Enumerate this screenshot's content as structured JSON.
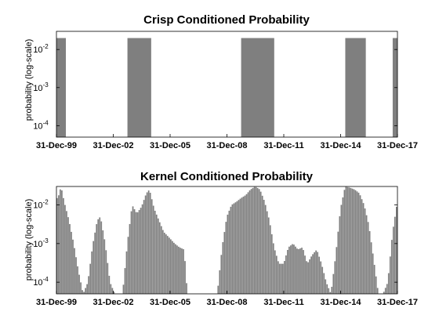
{
  "chart_data": [
    {
      "type": "bar",
      "title": "Crisp Conditioned Probability",
      "ylabel": "probability (log-scale)",
      "yscale": "log",
      "ylim": [
        5e-05,
        0.03
      ],
      "yticks": [
        {
          "value": 0.0001,
          "base": "10",
          "exp": "-4"
        },
        {
          "value": 0.001,
          "base": "10",
          "exp": "-3"
        },
        {
          "value": 0.01,
          "base": "10",
          "exp": "-2"
        }
      ],
      "xlim": [
        "1999-12-31",
        "2017-12-31"
      ],
      "xticks": [
        "31-Dec-99",
        "31-Dec-02",
        "31-Dec-05",
        "31-Dec-08",
        "31-Dec-11",
        "31-Dec-14",
        "31-Dec-17"
      ],
      "color": "#7f7f7f",
      "bars": [
        {
          "start": "1999-12-31",
          "end": "2000-06-30",
          "value": 0.02
        },
        {
          "start": "2003-09-30",
          "end": "2004-12-31",
          "value": 0.02
        },
        {
          "start": "2009-09-30",
          "end": "2011-06-30",
          "value": 0.02
        },
        {
          "start": "2015-03-31",
          "end": "2016-04-30",
          "value": 0.02
        },
        {
          "start": "2017-09-30",
          "end": "2017-12-31",
          "value": 0.02
        }
      ]
    },
    {
      "type": "bar",
      "title": "Kernel Conditioned Probability",
      "ylabel": "probability (log-scale)",
      "yscale": "log",
      "ylim": [
        5e-05,
        0.03
      ],
      "yticks": [
        {
          "value": 0.0001,
          "base": "10",
          "exp": "-4"
        },
        {
          "value": 0.001,
          "base": "10",
          "exp": "-3"
        },
        {
          "value": 0.01,
          "base": "10",
          "exp": "-2"
        }
      ],
      "xlim": [
        "1999-12-31",
        "2017-12-31"
      ],
      "xticks": [
        "31-Dec-99",
        "31-Dec-02",
        "31-Dec-05",
        "31-Dec-08",
        "31-Dec-11",
        "31-Dec-14",
        "31-Dec-17"
      ],
      "color": "#7f7f7f",
      "profile": [
        [
          "2000-01-31",
          0.015
        ],
        [
          "2000-03-31",
          0.03
        ],
        [
          "2000-05-31",
          0.012
        ],
        [
          "2000-08-31",
          0.004
        ],
        [
          "2000-11-30",
          0.001
        ],
        [
          "2001-02-28",
          0.0002
        ],
        [
          "2001-05-31",
          5e-05
        ],
        [
          "2001-08-31",
          0.0001
        ],
        [
          "2001-11-30",
          0.0009
        ],
        [
          "2002-02-28",
          0.004
        ],
        [
          "2002-04-30",
          0.005
        ],
        [
          "2002-07-31",
          0.001
        ],
        [
          "2002-10-31",
          0.0001
        ],
        [
          "2003-01-31",
          5e-05
        ],
        [
          "2003-06-30",
          5e-05
        ],
        [
          "2003-09-30",
          0.001
        ],
        [
          "2003-12-31",
          0.01
        ],
        [
          "2004-03-31",
          0.006
        ],
        [
          "2004-06-30",
          0.009
        ],
        [
          "2004-09-30",
          0.02
        ],
        [
          "2004-11-30",
          0.025
        ],
        [
          "2005-02-28",
          0.008
        ],
        [
          "2005-05-31",
          0.004
        ],
        [
          "2005-08-31",
          0.002
        ],
        [
          "2005-11-30",
          0.0015
        ],
        [
          "2006-03-31",
          0.001
        ],
        [
          "2006-06-30",
          0.0008
        ],
        [
          "2006-09-30",
          0.0007
        ],
        [
          "2006-11-30",
          5e-05
        ],
        [
          "2008-06-30",
          5e-05
        ],
        [
          "2008-09-30",
          0.0008
        ],
        [
          "2008-12-31",
          0.005
        ],
        [
          "2009-03-31",
          0.01
        ],
        [
          "2009-06-30",
          0.012
        ],
        [
          "2009-09-30",
          0.015
        ],
        [
          "2009-12-31",
          0.018
        ],
        [
          "2010-03-31",
          0.025
        ],
        [
          "2010-06-30",
          0.03
        ],
        [
          "2010-09-30",
          0.025
        ],
        [
          "2010-12-31",
          0.012
        ],
        [
          "2011-03-31",
          0.004
        ],
        [
          "2011-06-30",
          0.0008
        ],
        [
          "2011-09-30",
          0.0003
        ],
        [
          "2011-12-31",
          0.0003
        ],
        [
          "2012-03-31",
          0.0008
        ],
        [
          "2012-06-30",
          0.001
        ],
        [
          "2012-09-30",
          0.0007
        ],
        [
          "2012-12-31",
          0.0008
        ],
        [
          "2013-03-31",
          0.0003
        ],
        [
          "2013-06-30",
          0.0005
        ],
        [
          "2013-09-30",
          0.0007
        ],
        [
          "2013-12-31",
          0.0003
        ],
        [
          "2014-03-31",
          0.0001
        ],
        [
          "2014-06-30",
          5e-05
        ],
        [
          "2014-09-30",
          0.0005
        ],
        [
          "2014-12-31",
          0.008
        ],
        [
          "2015-03-31",
          0.03
        ],
        [
          "2015-06-30",
          0.028
        ],
        [
          "2015-09-30",
          0.025
        ],
        [
          "2015-12-31",
          0.02
        ],
        [
          "2016-03-31",
          0.01
        ],
        [
          "2016-06-30",
          0.003
        ],
        [
          "2016-09-30",
          0.0004
        ],
        [
          "2016-12-31",
          5e-05
        ],
        [
          "2017-03-31",
          5e-05
        ],
        [
          "2017-06-30",
          0.0001
        ],
        [
          "2017-09-30",
          0.002
        ],
        [
          "2017-12-31",
          0.012
        ]
      ]
    }
  ]
}
